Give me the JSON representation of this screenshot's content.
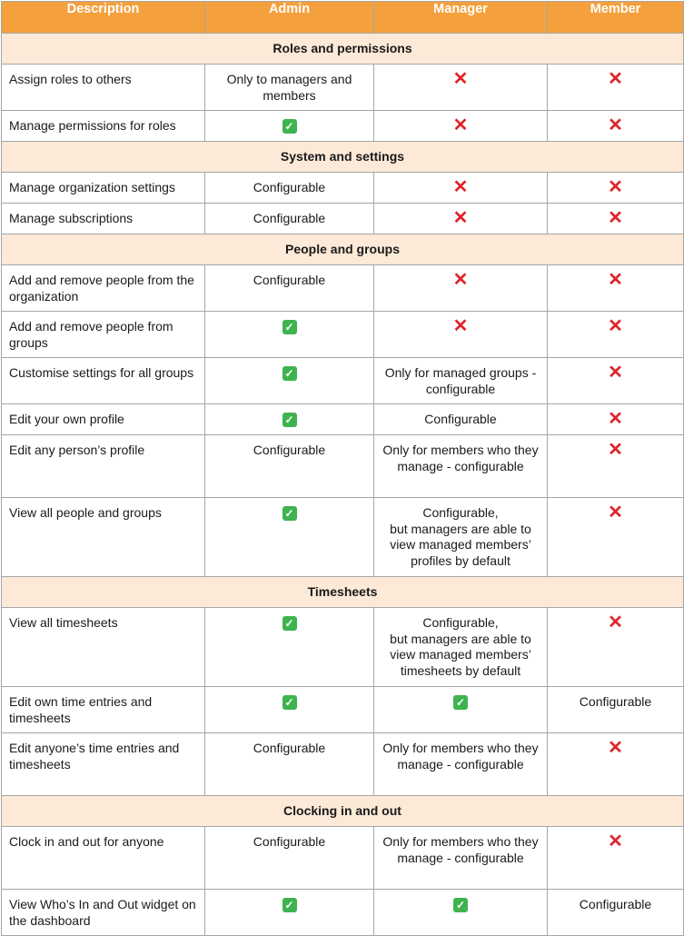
{
  "header": {
    "description": "Description",
    "admin": "Admin",
    "manager": "Manager",
    "member": "Member"
  },
  "icons": {
    "yes": "✓",
    "no": "✕",
    "yes_name": "green-check-icon",
    "no_name": "red-cross-icon"
  },
  "colors": {
    "header_bg": "#f4a03c",
    "section_bg": "#fde9d7",
    "check": "#3fb34f",
    "cross": "#e0232a"
  },
  "sections": [
    {
      "title": "Roles and permissions",
      "rows": [
        {
          "h": "h51",
          "description": "Assign roles to others",
          "admin": "Only to managers and members",
          "manager": "no",
          "member": "no"
        },
        {
          "h": "h34",
          "description": "Manage permissions for roles",
          "admin": "yes",
          "manager": "no",
          "member": "no"
        }
      ]
    },
    {
      "title": "System and settings",
      "rows": [
        {
          "h": "h34",
          "description": "Manage organization settings",
          "admin": "Configurable",
          "manager": "no",
          "member": "no"
        },
        {
          "h": "h34",
          "description": "Manage subscriptions",
          "admin": "Configurable",
          "manager": "no",
          "member": "no"
        }
      ]
    },
    {
      "title": "People and groups",
      "rows": [
        {
          "h": "h51",
          "description": "Add and remove people from the organization",
          "admin": "Configurable",
          "manager": "no",
          "member": "no"
        },
        {
          "h": "h51",
          "description": "Add and remove people from groups",
          "admin": "yes",
          "manager": "no",
          "member": "no"
        },
        {
          "h": "h51",
          "description": "Customise settings for all groups",
          "admin": "yes",
          "manager": "Only for managed groups - configurable",
          "member": "no"
        },
        {
          "h": "h34",
          "description": "Edit your own profile",
          "admin": "yes",
          "manager": "Configurable",
          "member": "no"
        },
        {
          "h": "h69",
          "description": "Edit any person’s profile",
          "admin": "Configurable",
          "manager": "Only for members who they manage - configurable",
          "member": "no"
        },
        {
          "h": "h87",
          "description": "View all people and groups",
          "admin": "yes",
          "manager": "Configurable,\nbut managers are able to view managed members’ profiles by default",
          "member": "no"
        }
      ]
    },
    {
      "title": "Timesheets",
      "rows": [
        {
          "h": "h87",
          "description": "View all timesheets",
          "admin": "yes",
          "manager": "Configurable,\nbut managers are able to view managed members’ timesheets by default",
          "member": "no"
        },
        {
          "h": "h51",
          "description": "Edit own time entries and timesheets",
          "admin": "yes",
          "manager": "yes",
          "member": "Configurable"
        },
        {
          "h": "h69",
          "description": "Edit anyone’s time entries and timesheets",
          "admin": "Configurable",
          "manager": "Only for members who they manage - configurable",
          "member": "no"
        }
      ]
    },
    {
      "title": "Clocking in and out",
      "rows": [
        {
          "h": "h69",
          "description": "Clock in and out for anyone",
          "admin": "Configurable",
          "manager": "Only for members who they manage - configurable",
          "member": "no"
        },
        {
          "h": "h51",
          "description": "View Who’s In and Out widget on the dashboard",
          "admin": "yes",
          "manager": "yes",
          "member": "Configurable"
        }
      ]
    }
  ]
}
